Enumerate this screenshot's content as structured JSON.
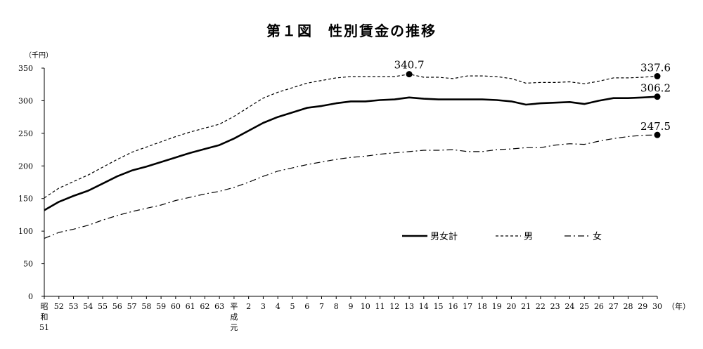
{
  "title": "第１図　性別賃金の推移",
  "chart_data": {
    "type": "line",
    "title": "第１図　性別賃金の推移",
    "ylabel": "（千円）",
    "xlabel": "（年）",
    "ylim": [
      0,
      350
    ],
    "yticks": [
      0,
      50,
      100,
      150,
      200,
      250,
      300,
      350
    ],
    "categories": [
      "昭和51",
      "52",
      "53",
      "54",
      "55",
      "56",
      "57",
      "58",
      "59",
      "60",
      "61",
      "62",
      "63",
      "平成元",
      "2",
      "3",
      "4",
      "5",
      "6",
      "7",
      "8",
      "9",
      "10",
      "11",
      "12",
      "13",
      "14",
      "15",
      "16",
      "17",
      "18",
      "19",
      "20",
      "21",
      "22",
      "23",
      "24",
      "25",
      "26",
      "27",
      "28",
      "29",
      "30"
    ],
    "tick_labels": [
      [
        "昭",
        "和",
        "51"
      ],
      [
        "52"
      ],
      [
        "53"
      ],
      [
        "54"
      ],
      [
        "55"
      ],
      [
        "56"
      ],
      [
        "57"
      ],
      [
        "58"
      ],
      [
        "59"
      ],
      [
        "60"
      ],
      [
        "61"
      ],
      [
        "62"
      ],
      [
        "63"
      ],
      [
        "平",
        "成",
        "元"
      ],
      [
        "2"
      ],
      [
        "3"
      ],
      [
        "4"
      ],
      [
        "5"
      ],
      [
        "6"
      ],
      [
        "7"
      ],
      [
        "8"
      ],
      [
        "9"
      ],
      [
        "10"
      ],
      [
        "11"
      ],
      [
        "12"
      ],
      [
        "13"
      ],
      [
        "14"
      ],
      [
        "15"
      ],
      [
        "16"
      ],
      [
        "17"
      ],
      [
        "18"
      ],
      [
        "19"
      ],
      [
        "20"
      ],
      [
        "21"
      ],
      [
        "22"
      ],
      [
        "23"
      ],
      [
        "24"
      ],
      [
        "25"
      ],
      [
        "26"
      ],
      [
        "27"
      ],
      [
        "28"
      ],
      [
        "29"
      ],
      [
        "30"
      ]
    ],
    "grid": false,
    "legend_position": "right-middle",
    "series": [
      {
        "name": "男女計",
        "style": "solid",
        "values": [
          132,
          145,
          154,
          162,
          173,
          184,
          193,
          199,
          206,
          213,
          220,
          226,
          232,
          242,
          254,
          266,
          275,
          282,
          289,
          292,
          296,
          299,
          299,
          301,
          302,
          305,
          303,
          302,
          302,
          302,
          302,
          301,
          299,
          294,
          296,
          297,
          298,
          295,
          300,
          304,
          304,
          305,
          306.2
        ],
        "end_label": "306.2"
      },
      {
        "name": "男",
        "style": "dashed",
        "values": [
          151,
          166,
          176,
          186,
          198,
          210,
          221,
          229,
          237,
          245,
          252,
          258,
          264,
          276,
          290,
          304,
          313,
          320,
          327,
          331,
          335,
          337,
          337,
          337,
          337,
          340.7,
          336,
          336,
          334,
          338,
          338,
          337,
          334,
          327,
          328,
          328,
          329,
          326,
          330,
          335,
          335,
          336,
          337.6
        ],
        "peak_label": "340.7",
        "end_label": "337.6"
      },
      {
        "name": "女",
        "style": "dash-dot",
        "values": [
          89,
          98,
          103,
          109,
          117,
          124,
          130,
          135,
          140,
          147,
          152,
          157,
          161,
          167,
          175,
          184,
          192,
          197,
          202,
          206,
          210,
          213,
          215,
          218,
          220,
          222,
          224,
          224,
          225,
          222,
          222,
          225,
          226,
          228,
          228,
          232,
          234,
          233,
          238,
          242,
          245,
          247,
          247.5
        ],
        "end_label": "247.5"
      }
    ]
  }
}
